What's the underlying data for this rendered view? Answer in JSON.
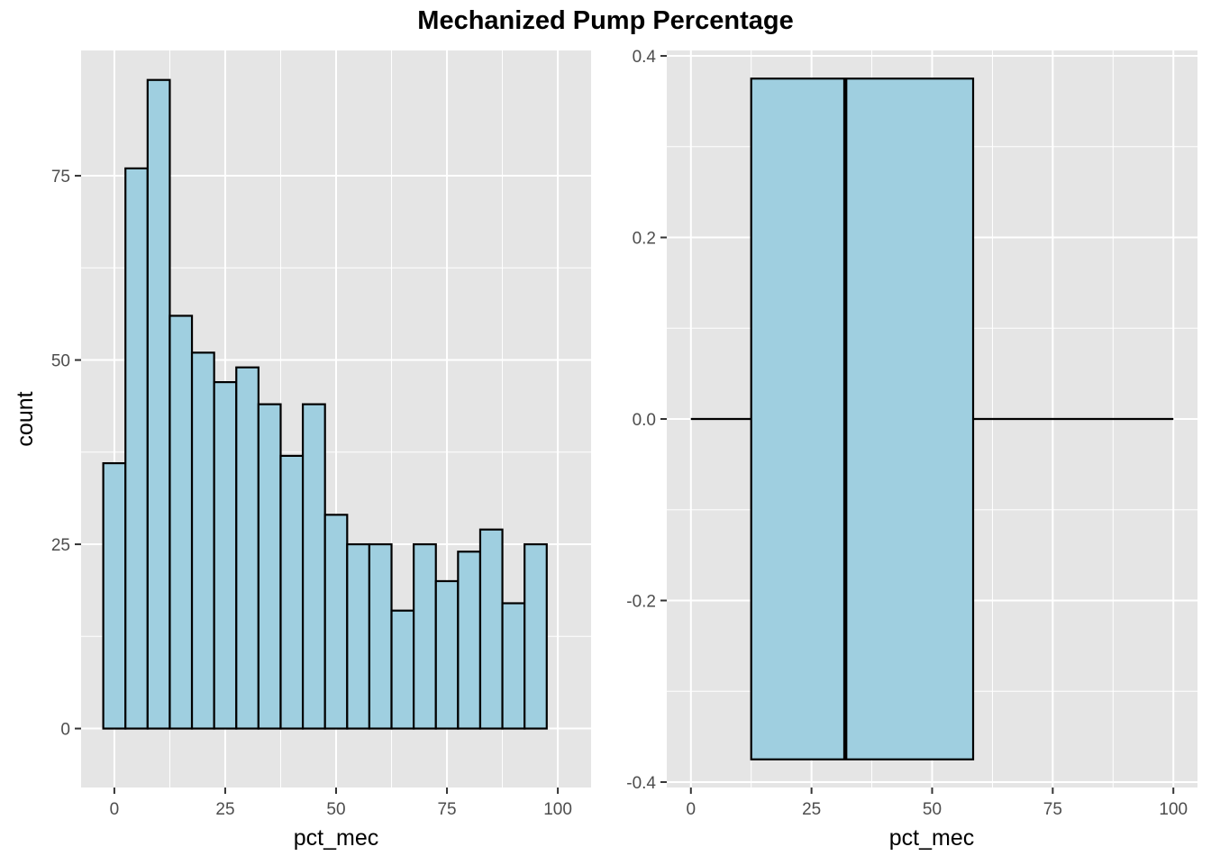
{
  "title": "Mechanized Pump Percentage",
  "colors": {
    "panel_bg": "#e5e5e5",
    "grid": "#ffffff",
    "fill": "#9fcfe0",
    "stroke": "#000000",
    "tick_text": "#4d4d4d",
    "tick_mark": "#333333"
  },
  "chart_data": [
    {
      "type": "bar",
      "subtype": "histogram",
      "title": "",
      "xlabel": "pct_mec",
      "ylabel": "count",
      "bin_width": 5,
      "bin_centers": [
        0,
        5,
        10,
        15,
        20,
        25,
        30,
        35,
        40,
        45,
        50,
        55,
        60,
        65,
        70,
        75,
        80,
        85,
        90,
        95,
        100
      ],
      "values": [
        36,
        76,
        88,
        56,
        51,
        47,
        49,
        44,
        37,
        44,
        29,
        25,
        25,
        16,
        25,
        20,
        24,
        27,
        17,
        25,
        0
      ],
      "xlim": [
        -7.5,
        107.5
      ],
      "ylim": [
        -8,
        92
      ],
      "x_ticks": [
        0,
        25,
        50,
        75,
        100
      ],
      "x_tick_labels": [
        "0",
        "25",
        "50",
        "75",
        "100"
      ],
      "y_ticks": [
        0,
        25,
        50,
        75
      ],
      "y_tick_labels": [
        "0",
        "25",
        "50",
        "75"
      ],
      "grid": true
    },
    {
      "type": "boxplot",
      "title": "",
      "xlabel": "pct_mec",
      "ylabel": "",
      "min": 0,
      "q1": 12.5,
      "median": 32,
      "q3": 58.5,
      "max": 100,
      "box_half_height": 0.375,
      "xlim": [
        -5,
        105
      ],
      "ylim": [
        -0.4,
        0.4
      ],
      "x_ticks": [
        0,
        25,
        50,
        75,
        100
      ],
      "x_tick_labels": [
        "0",
        "25",
        "50",
        "75",
        "100"
      ],
      "y_ticks": [
        0.4,
        0.2,
        0.0,
        -0.2,
        -0.4
      ],
      "y_tick_labels": [
        "0.4",
        "0.2",
        "0.0",
        "-0.2",
        "-0.4"
      ],
      "grid": true
    }
  ]
}
